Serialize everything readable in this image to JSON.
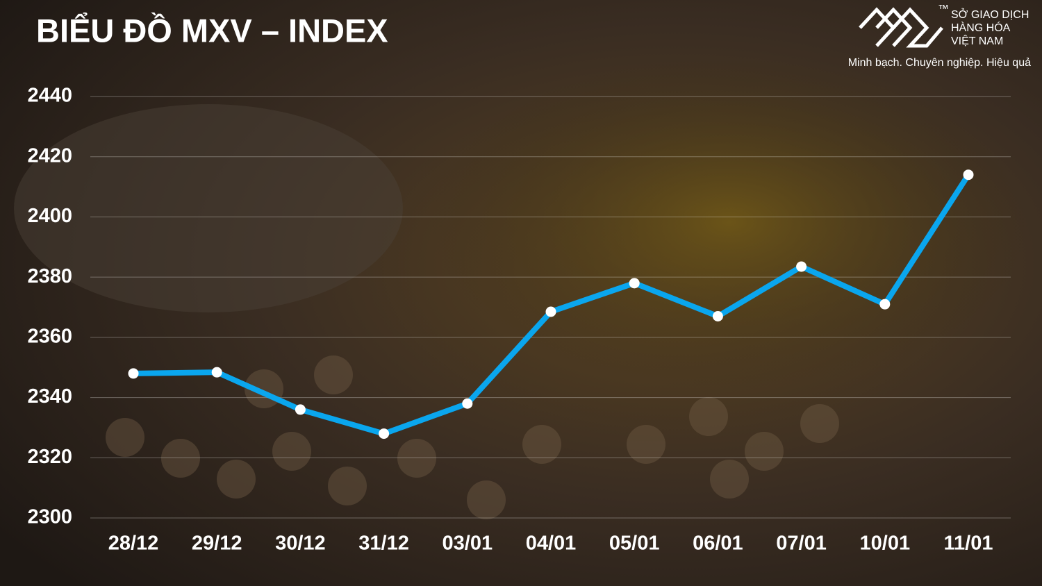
{
  "chart_data": {
    "type": "line",
    "title": "BIỂU ĐỒ MXV – INDEX",
    "categories": [
      "28/12",
      "29/12",
      "30/12",
      "31/12",
      "03/01",
      "04/01",
      "05/01",
      "06/01",
      "07/01",
      "10/01",
      "11/01"
    ],
    "values": [
      2348,
      2348.4,
      2336,
      2328,
      2338,
      2368.5,
      2378,
      2367,
      2383.5,
      2371,
      2414
    ],
    "color": "#0aa6ee",
    "ylim": [
      2300,
      2440
    ],
    "yticks": [
      2300,
      2320,
      2340,
      2360,
      2380,
      2400,
      2420,
      2440
    ],
    "grid": true
  },
  "logo": {
    "line1": "SỞ GIAO DỊCH",
    "line2": "HÀNG HÓA",
    "line3": "VIỆT NAM",
    "tm": "™",
    "slogan": "Minh bạch. Chuyên nghiệp. Hiệu quả"
  }
}
